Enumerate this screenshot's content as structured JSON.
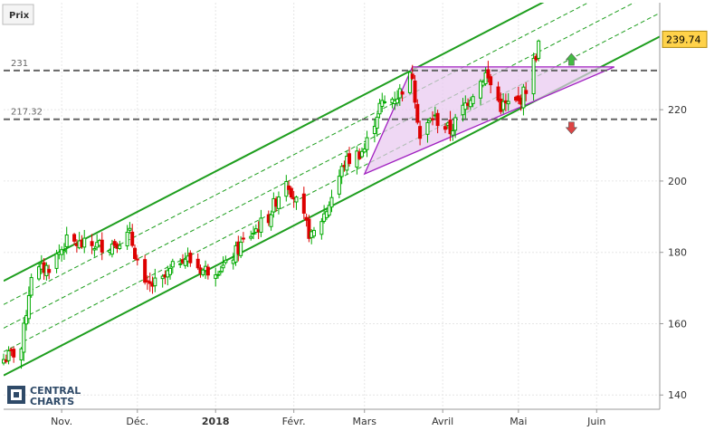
{
  "panel": {
    "label": "Prix"
  },
  "logo": {
    "line1": "CENTRAL",
    "line2": "CHARTS",
    "icon": "central-charts-logo-icon"
  },
  "colors": {
    "up_candle": "#00aa00",
    "down_candle": "#dd0000",
    "channel": "#1e9e1e",
    "level_line": "#666666",
    "triangle_stroke": "#a020c0",
    "triangle_fill": "#e8c8f0",
    "last_price_bg": "#ffd24a",
    "arrow_up": "#44bb44",
    "arrow_down": "#dd4444"
  },
  "chart_data": {
    "type": "candlestick",
    "x_axis": {
      "ticks": [
        {
          "label": "Nov.",
          "date": "2017-11-01",
          "bold": false
        },
        {
          "label": "Déc.",
          "date": "2017-12-01",
          "bold": false
        },
        {
          "label": "2018",
          "date": "2018-01-01",
          "bold": true
        },
        {
          "label": "Févr.",
          "date": "2018-02-01",
          "bold": false
        },
        {
          "label": "Mars",
          "date": "2018-03-01",
          "bold": false
        },
        {
          "label": "Avril",
          "date": "2018-04-01",
          "bold": false
        },
        {
          "label": "Mai",
          "date": "2018-05-01",
          "bold": false
        },
        {
          "label": "Juin",
          "date": "2018-06-01",
          "bold": false
        }
      ],
      "range": [
        "2017-10-09",
        "2018-06-26"
      ]
    },
    "y_axis": {
      "ticks": [
        140,
        160,
        180,
        200,
        220
      ],
      "range": [
        136,
        250
      ],
      "position": "right"
    },
    "last_price": {
      "value": 239.74,
      "label": "239.74"
    },
    "levels": [
      {
        "name": "resistance",
        "value": 231,
        "label": "231"
      },
      {
        "name": "support",
        "value": 217.32,
        "label": "217.32"
      }
    ],
    "channel": {
      "start_date": "2017-10-09",
      "end_date": "2018-06-26",
      "lower_start": 145.5,
      "lower_end": 240.5,
      "upper_start": 172,
      "upper_end": 267,
      "inner_lines": [
        0.25,
        0.5,
        0.75
      ]
    },
    "triangle": [
      {
        "date": "2018-03-01",
        "value": 202
      },
      {
        "date": "2018-03-20",
        "value": 232
      },
      {
        "date": "2018-06-08",
        "value": 232
      }
    ],
    "arrows": [
      {
        "direction": "up",
        "date": "2018-05-22",
        "value": 234
      },
      {
        "direction": "down",
        "date": "2018-05-22",
        "value": 215
      }
    ],
    "candles_summary": {
      "start_date": "2017-10-09",
      "end_date": "2018-05-09",
      "trading_days": 152,
      "close_path": [
        [
          "2017-10-09",
          150
        ],
        [
          "2017-10-16",
          153
        ],
        [
          "2017-10-20",
          174
        ],
        [
          "2017-10-27",
          176
        ],
        [
          "2017-11-03",
          183
        ],
        [
          "2017-11-10",
          182
        ],
        [
          "2017-11-20",
          182
        ],
        [
          "2017-11-28",
          185
        ],
        [
          "2017-12-04",
          170
        ],
        [
          "2017-12-11",
          172
        ],
        [
          "2017-12-19",
          179
        ],
        [
          "2017-12-27",
          175
        ],
        [
          "2018-01-05",
          176
        ],
        [
          "2018-01-12",
          183
        ],
        [
          "2018-01-22",
          190
        ],
        [
          "2018-01-29",
          201
        ],
        [
          "2018-02-02",
          194
        ],
        [
          "2018-02-08",
          184
        ],
        [
          "2018-02-14",
          192
        ],
        [
          "2018-02-21",
          205
        ],
        [
          "2018-03-01",
          209
        ],
        [
          "2018-03-07",
          221
        ],
        [
          "2018-03-14",
          224
        ],
        [
          "2018-03-20",
          230
        ],
        [
          "2018-03-23",
          212
        ],
        [
          "2018-03-28",
          218
        ],
        [
          "2018-04-04",
          214
        ],
        [
          "2018-04-12",
          224
        ],
        [
          "2018-04-18",
          230
        ],
        [
          "2018-04-24",
          221
        ],
        [
          "2018-05-01",
          222
        ],
        [
          "2018-05-04",
          226
        ],
        [
          "2018-05-09",
          238
        ]
      ]
    }
  }
}
